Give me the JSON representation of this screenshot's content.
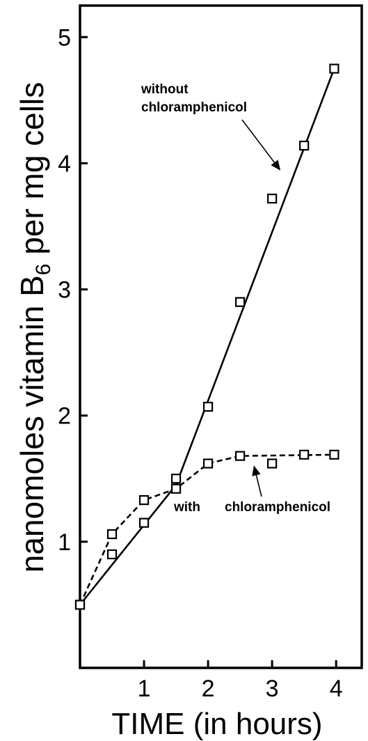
{
  "chart_data": {
    "type": "line",
    "title": "",
    "xlabel": "TIME (in hours)",
    "ylabel": {
      "prefix": "nanomoles  vitamin  B",
      "subscript": "6",
      "suffix": "  per  mg  cells"
    },
    "xlim": [
      0,
      4.4
    ],
    "ylim": [
      0,
      5.25
    ],
    "x_ticks": [
      1,
      2,
      3,
      4
    ],
    "x_tick_labels": [
      "1",
      "2",
      "3",
      "4"
    ],
    "y_ticks": [
      1,
      2,
      3,
      4,
      5
    ],
    "y_tick_labels": [
      "1",
      "2",
      "3",
      "4",
      "5"
    ],
    "grid": false,
    "series": [
      {
        "name": "without chloramphenicol",
        "line_style": "solid",
        "points": [
          {
            "x": 0,
            "y": 0.5
          },
          {
            "x": 0.5,
            "y": 0.9
          },
          {
            "x": 1.0,
            "y": 1.15
          },
          {
            "x": 1.5,
            "y": 1.5
          },
          {
            "x": 2.0,
            "y": 2.07
          },
          {
            "x": 2.5,
            "y": 2.9
          },
          {
            "x": 3.0,
            "y": 3.72
          },
          {
            "x": 3.5,
            "y": 4.14
          },
          {
            "x": 3.97,
            "y": 4.75
          }
        ],
        "fit_line": [
          {
            "x": 0,
            "y": 0.5
          },
          {
            "x": 1.5,
            "y": 1.45
          },
          {
            "x": 3.97,
            "y": 4.75
          }
        ]
      },
      {
        "name": "with chloramphenicol",
        "line_style": "dashed",
        "points": [
          {
            "x": 0,
            "y": 0.5
          },
          {
            "x": 0.5,
            "y": 1.06
          },
          {
            "x": 1.0,
            "y": 1.33
          },
          {
            "x": 1.5,
            "y": 1.42
          },
          {
            "x": 2.0,
            "y": 1.62
          },
          {
            "x": 2.5,
            "y": 1.68
          },
          {
            "x": 3.0,
            "y": 1.62
          },
          {
            "x": 3.5,
            "y": 1.69
          },
          {
            "x": 3.97,
            "y": 1.69
          }
        ],
        "fit_line": [
          {
            "x": 0,
            "y": 0.5
          },
          {
            "x": 0.5,
            "y": 1.06
          },
          {
            "x": 1.0,
            "y": 1.33
          },
          {
            "x": 1.5,
            "y": 1.42
          },
          {
            "x": 2.0,
            "y": 1.62
          },
          {
            "x": 2.5,
            "y": 1.68
          },
          {
            "x": 3.97,
            "y": 1.69
          }
        ]
      }
    ],
    "annotations": [
      {
        "text_lines": [
          "without",
          "chloramphenicol"
        ],
        "points_to": {
          "x": 3.12,
          "y": 3.95
        }
      },
      {
        "text_lines": [
          "with",
          "chloramphenicol"
        ],
        "points_to": {
          "x": 2.72,
          "y": 1.64
        }
      }
    ],
    "marker": "open-square"
  }
}
